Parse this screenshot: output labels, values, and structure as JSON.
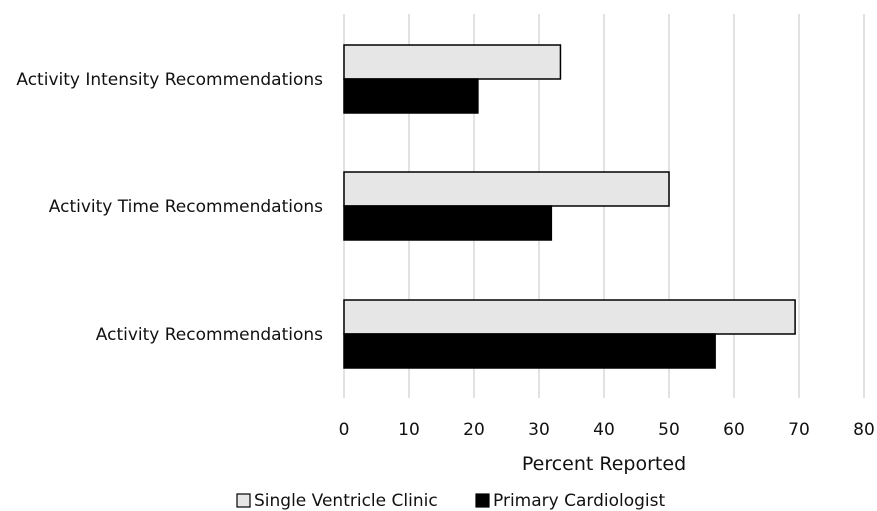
{
  "chart_data": {
    "type": "bar",
    "orientation": "horizontal",
    "categories": [
      "Activity Intensity Recommendations",
      "Activity Time Recommendations",
      "Activity Recommendations"
    ],
    "series": [
      {
        "name": "Single Ventricle Clinic",
        "values": [
          33.3,
          50.0,
          69.4
        ],
        "color": "#e6e6e6",
        "stroke": "#000000"
      },
      {
        "name": "Primary Cardiologist",
        "values": [
          20.6,
          31.9,
          57.1
        ],
        "color": "#000000",
        "stroke": "#000000"
      }
    ],
    "xlabel": "Percent Reported",
    "ylabel": "",
    "xlim": [
      0,
      80
    ],
    "xticks": [
      "0",
      "10",
      "20",
      "30",
      "40",
      "50",
      "60",
      "70",
      "80"
    ],
    "grid": "vertical",
    "grid_color": "#d9d9d9",
    "legend_position": "bottom"
  }
}
